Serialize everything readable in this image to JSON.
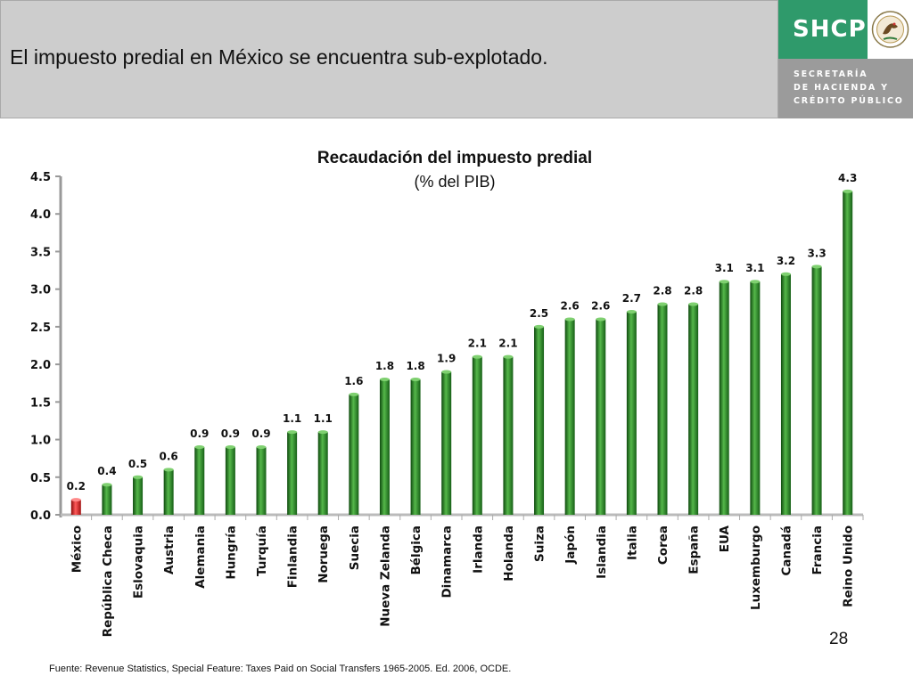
{
  "header": {
    "title": "El impuesto predial en México se encuentra sub-explotado."
  },
  "brand": {
    "logo_text": "SHCP",
    "name_lines": [
      "SECRETARÍA",
      "DE HACIENDA Y",
      "CRÉDITO PÚBLICO"
    ],
    "seal_icon": "mexican-eagle-seal-icon",
    "colors": {
      "green": "#2f9a6b",
      "gray": "#9b9b9b"
    }
  },
  "chart_data": {
    "type": "bar",
    "title": "Recaudación del impuesto predial",
    "subtitle": "(% del PIB)",
    "categories": [
      "México",
      "República Checa",
      "Eslovaquia",
      "Austria",
      "Alemania",
      "Hungría",
      "Turquía",
      "Finlandia",
      "Noruega",
      "Suecia",
      "Nueva Zelanda",
      "Bélgica",
      "Dinamarca",
      "Irlanda",
      "Holanda",
      "Suiza",
      "Japón",
      "Islandia",
      "Italia",
      "Corea",
      "España",
      "EUA",
      "Luxemburgo",
      "Canadá",
      "Francia",
      "Reino Unido"
    ],
    "values": [
      0.2,
      0.4,
      0.5,
      0.6,
      0.9,
      0.9,
      0.9,
      1.1,
      1.1,
      1.6,
      1.8,
      1.8,
      1.9,
      2.1,
      2.1,
      2.5,
      2.6,
      2.6,
      2.7,
      2.8,
      2.8,
      3.1,
      3.1,
      3.2,
      3.3,
      4.3
    ],
    "data_labels": [
      "0.2",
      "0.4",
      "0.5",
      "0.6",
      "0.9",
      "0.9",
      "0.9",
      "1.1",
      "1.1",
      "1.6",
      "1.8",
      "1.8",
      "1.9",
      "2.1",
      "2.1",
      "2.5",
      "2.6",
      "2.6",
      "2.7",
      "2.8",
      "2.8",
      "3.1",
      "3.1",
      "3.2",
      "3.3",
      "4.3"
    ],
    "yticks": [
      "0.0",
      "0.5",
      "1.0",
      "1.5",
      "2.0",
      "2.5",
      "3.0",
      "3.5",
      "4.0",
      "4.5"
    ],
    "ylim": [
      0,
      4.5
    ],
    "xlabel": "",
    "ylabel": "",
    "grid": false,
    "highlight_category": "México",
    "colors": {
      "bar": "#2e8b2e",
      "highlight": "#d42020"
    }
  },
  "page_number": "28",
  "source": "Fuente: Revenue Statistics, Special Feature: Taxes Paid on Social Transfers 1965-2005. Ed. 2006, OCDE."
}
